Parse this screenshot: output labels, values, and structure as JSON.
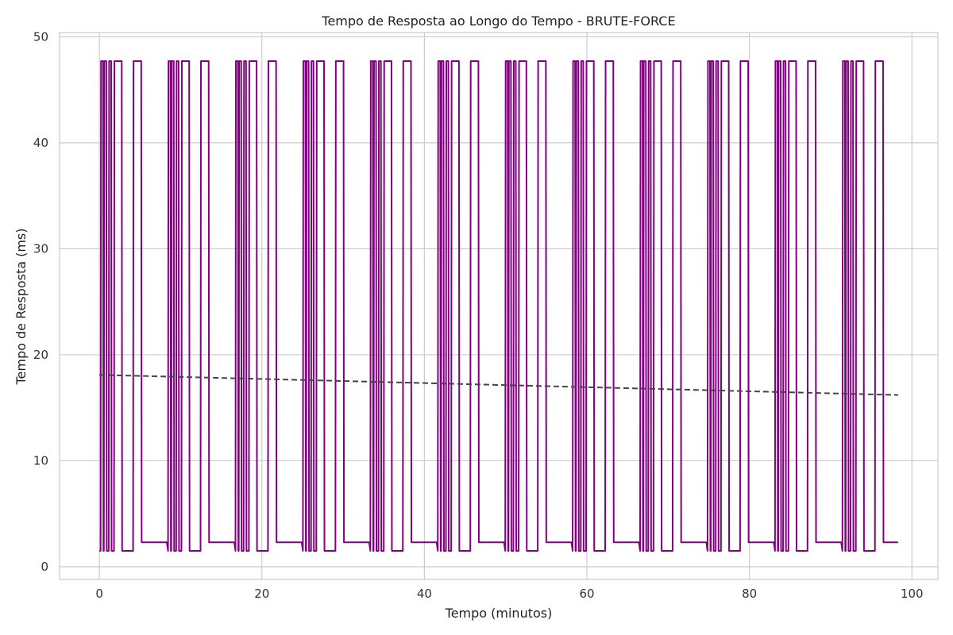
{
  "chart_data": {
    "type": "line",
    "title": "Tempo de Resposta ao Longo do Tempo - BRUTE-FORCE",
    "xlabel": "Tempo (minutos)",
    "ylabel": "Tempo de Resposta (ms)",
    "xlim": [
      -4.9,
      103.2
    ],
    "ylim": [
      -1.2,
      50.4
    ],
    "xticks": [
      0,
      20,
      40,
      60,
      80,
      100
    ],
    "yticks": [
      0,
      10,
      20,
      30,
      40,
      50
    ],
    "grid": true,
    "colors": {
      "series": "#800080",
      "trend": "#444444"
    },
    "pattern": {
      "period_minutes": 8.3,
      "burst_segments_minutes": [
        [
          0.2,
          0.45
        ],
        [
          0.6,
          0.85
        ],
        [
          1.2,
          1.45
        ],
        [
          1.85,
          2.75
        ],
        [
          4.2,
          5.15
        ]
      ],
      "burst_level_ms": 47.7,
      "idle_level_ms": 1.5,
      "plateau_level_ms": 2.3,
      "plateau_span_minutes": [
        5.2,
        8.3
      ],
      "end_minutes": 98.3
    },
    "series": [
      {
        "style": "solid",
        "x": [
          0.0,
          0.15,
          0.2,
          0.45,
          0.5,
          0.55,
          0.6,
          0.85,
          0.9,
          1.15,
          1.2,
          1.45,
          1.5,
          1.8,
          1.85,
          2.75,
          2.8,
          4.15,
          4.2,
          5.15,
          5.2,
          8.3,
          8.45,
          8.5,
          8.75,
          8.8,
          8.85,
          8.9,
          9.15,
          9.2,
          9.45,
          9.5,
          9.75,
          9.8,
          10.1,
          10.15,
          11.05,
          11.1,
          12.45,
          12.5,
          13.45,
          13.5,
          16.6,
          16.75,
          16.8,
          17.05,
          17.1,
          17.15,
          17.2,
          17.45,
          17.5,
          17.75,
          17.8,
          18.05,
          18.1,
          18.4,
          18.45,
          19.35,
          19.4,
          20.75,
          20.8,
          21.75,
          21.8,
          24.9,
          25.05,
          25.1,
          25.35,
          25.4,
          25.45,
          25.5,
          25.75,
          25.8,
          26.05,
          26.1,
          26.35,
          26.4,
          26.7,
          26.75,
          27.65,
          27.7,
          29.05,
          29.1,
          30.05,
          30.1,
          33.2,
          33.35,
          33.4,
          33.65,
          33.7,
          33.75,
          33.8,
          34.05,
          34.1,
          34.35,
          34.4,
          34.65,
          34.7,
          35.0,
          35.05,
          35.95,
          36.0,
          37.35,
          37.4,
          38.35,
          38.4,
          41.5,
          41.65,
          41.7,
          41.95,
          42.0,
          42.05,
          42.1,
          42.35,
          42.4,
          42.65,
          42.7,
          42.95,
          43.0,
          43.3,
          43.35,
          44.25,
          44.3,
          45.65,
          45.7,
          46.65,
          46.7,
          49.8,
          49.95,
          50.0,
          50.25,
          50.3,
          50.35,
          50.4,
          50.65,
          50.7,
          50.95,
          51.0,
          51.25,
          51.3,
          51.6,
          51.65,
          52.55,
          52.6,
          53.95,
          54.0,
          54.95,
          55.0,
          58.1,
          58.25,
          58.3,
          58.55,
          58.6,
          58.65,
          58.7,
          58.95,
          59.0,
          59.25,
          59.3,
          59.55,
          59.6,
          59.9,
          59.95,
          60.85,
          60.9,
          62.25,
          62.3,
          63.25,
          63.3,
          66.4,
          66.55,
          66.6,
          66.85,
          66.9,
          66.95,
          67.0,
          67.25,
          67.3,
          67.55,
          67.6,
          67.85,
          67.9,
          68.2,
          68.25,
          69.15,
          69.2,
          70.55,
          70.6,
          71.55,
          71.6,
          74.7,
          74.85,
          74.9,
          75.15,
          75.2,
          75.25,
          75.3,
          75.55,
          75.6,
          75.85,
          75.9,
          76.15,
          76.2,
          76.5,
          76.55,
          77.45,
          77.5,
          78.85,
          78.9,
          79.85,
          79.9,
          83.0,
          83.15,
          83.2,
          83.45,
          83.5,
          83.55,
          83.6,
          83.85,
          83.9,
          84.15,
          84.2,
          84.45,
          84.5,
          84.8,
          84.85,
          85.75,
          85.8,
          87.15,
          87.2,
          88.15,
          88.2,
          91.3,
          91.45,
          91.5,
          91.75,
          91.8,
          91.85,
          91.9,
          92.15,
          92.2,
          92.45,
          92.5,
          92.75,
          92.8,
          93.1,
          93.15,
          94.05,
          94.1,
          95.45,
          95.5,
          96.45,
          96.5,
          98.3
        ],
        "y": [
          1.5,
          1.5,
          47.7,
          47.7,
          1.5,
          1.5,
          47.7,
          47.7,
          1.5,
          1.5,
          47.7,
          47.7,
          1.5,
          1.5,
          47.7,
          47.7,
          1.5,
          1.5,
          47.7,
          47.7,
          2.3,
          2.3,
          1.5,
          47.7,
          47.7,
          1.5,
          1.5,
          47.7,
          47.7,
          1.5,
          1.5,
          47.7,
          47.7,
          1.5,
          1.5,
          47.7,
          47.7,
          1.5,
          1.5,
          47.7,
          47.7,
          2.3,
          2.3,
          1.5,
          47.7,
          47.7,
          1.5,
          1.5,
          47.7,
          47.7,
          1.5,
          1.5,
          47.7,
          47.7,
          1.5,
          1.5,
          47.7,
          47.7,
          1.5,
          1.5,
          47.7,
          47.7,
          2.3,
          2.3,
          1.5,
          47.7,
          47.7,
          1.5,
          1.5,
          47.7,
          47.7,
          1.5,
          1.5,
          47.7,
          47.7,
          1.5,
          1.5,
          47.7,
          47.7,
          1.5,
          1.5,
          47.7,
          47.7,
          2.3,
          2.3,
          1.5,
          47.7,
          47.7,
          1.5,
          1.5,
          47.7,
          47.7,
          1.5,
          1.5,
          47.7,
          47.7,
          1.5,
          1.5,
          47.7,
          47.7,
          1.5,
          1.5,
          47.7,
          47.7,
          2.3,
          2.3,
          1.5,
          47.7,
          47.7,
          1.5,
          1.5,
          47.7,
          47.7,
          1.5,
          1.5,
          47.7,
          47.7,
          1.5,
          1.5,
          47.7,
          47.7,
          1.5,
          1.5,
          47.7,
          47.7,
          2.3,
          2.3,
          1.5,
          47.7,
          47.7,
          1.5,
          1.5,
          47.7,
          47.7,
          1.5,
          1.5,
          47.7,
          47.7,
          1.5,
          1.5,
          47.7,
          47.7,
          1.5,
          1.5,
          47.7,
          47.7,
          2.3,
          2.3,
          1.5,
          47.7,
          47.7,
          1.5,
          1.5,
          47.7,
          47.7,
          1.5,
          1.5,
          47.7,
          47.7,
          1.5,
          1.5,
          47.7,
          47.7,
          1.5,
          1.5,
          47.7,
          47.7,
          2.3,
          2.3,
          1.5,
          47.7,
          47.7,
          1.5,
          1.5,
          47.7,
          47.7,
          1.5,
          1.5,
          47.7,
          47.7,
          1.5,
          1.5,
          47.7,
          47.7,
          1.5,
          1.5,
          47.7,
          47.7,
          2.3,
          2.3,
          1.5,
          47.7,
          47.7,
          1.5,
          1.5,
          47.7,
          47.7,
          1.5,
          1.5,
          47.7,
          47.7,
          1.5,
          1.5,
          47.7,
          47.7,
          1.5,
          1.5,
          47.7,
          47.7,
          2.3,
          2.3,
          1.5,
          47.7,
          47.7,
          1.5,
          1.5,
          47.7,
          47.7,
          1.5,
          1.5,
          47.7,
          47.7,
          1.5,
          1.5,
          47.7,
          47.7,
          1.5,
          1.5,
          47.7,
          47.7,
          2.3,
          2.3,
          1.5,
          47.7,
          47.7,
          1.5,
          1.5,
          47.7,
          47.7,
          1.5,
          1.5,
          47.7,
          47.7,
          1.5,
          1.5,
          47.7,
          47.7,
          1.5,
          1.5,
          47.7,
          47.7,
          2.3,
          2.3
        ]
      },
      {
        "style": "dashed",
        "x": [
          0.0,
          98.3
        ],
        "y": [
          18.1,
          16.2
        ]
      }
    ]
  }
}
